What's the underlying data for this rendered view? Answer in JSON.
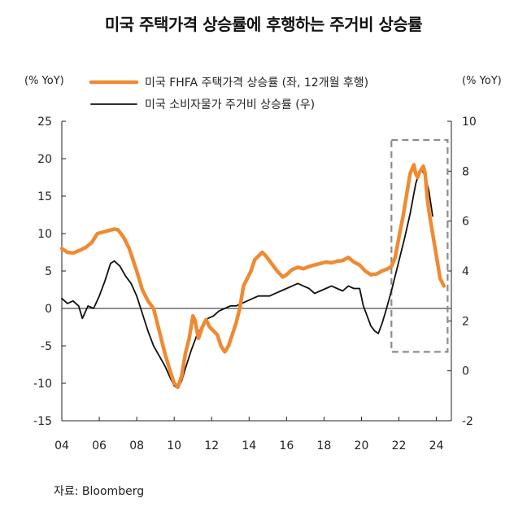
{
  "title": "미국 주택가격 상승률에 후행하는 주거비 상승률",
  "left_unit": "(% YoY)",
  "right_unit": "(% YoY)",
  "source": "자료: Bloomberg",
  "chart_data": {
    "type": "line",
    "x_ticks": [
      "04",
      "06",
      "08",
      "10",
      "12",
      "14",
      "16",
      "18",
      "20",
      "22",
      "24"
    ],
    "x_tick_years": [
      2004,
      2006,
      2008,
      2010,
      2012,
      2014,
      2016,
      2018,
      2020,
      2022,
      2024
    ],
    "xlim": [
      2004,
      2024.8
    ],
    "left_axis": {
      "ticks": [
        -15,
        -10,
        -5,
        0,
        5,
        10,
        15,
        20,
        25
      ],
      "ylim": [
        -15,
        25
      ]
    },
    "right_axis": {
      "ticks": [
        -2,
        0,
        2,
        4,
        6,
        8,
        10
      ],
      "ylim": [
        -2,
        10
      ]
    },
    "legend_placement": "top",
    "series": [
      {
        "name": "미국 FHFA 주택가격 상승률 (좌, 12개월 후행)",
        "axis": "left",
        "color": "#f08a32",
        "points": [
          [
            2004.0,
            8.0
          ],
          [
            2004.3,
            7.5
          ],
          [
            2004.6,
            7.4
          ],
          [
            2005.0,
            7.8
          ],
          [
            2005.3,
            8.2
          ],
          [
            2005.6,
            8.8
          ],
          [
            2005.9,
            10.0
          ],
          [
            2006.2,
            10.2
          ],
          [
            2006.5,
            10.4
          ],
          [
            2006.8,
            10.6
          ],
          [
            2007.0,
            10.5
          ],
          [
            2007.3,
            9.5
          ],
          [
            2007.6,
            8.0
          ],
          [
            2008.0,
            5.0
          ],
          [
            2008.3,
            2.5
          ],
          [
            2008.6,
            1.0
          ],
          [
            2008.9,
            0.0
          ],
          [
            2009.2,
            -3.0
          ],
          [
            2009.5,
            -6.0
          ],
          [
            2009.8,
            -8.5
          ],
          [
            2010.0,
            -10.0
          ],
          [
            2010.2,
            -10.5
          ],
          [
            2010.4,
            -9.0
          ],
          [
            2010.6,
            -6.0
          ],
          [
            2010.8,
            -4.0
          ],
          [
            2011.0,
            -1.0
          ],
          [
            2011.1,
            -1.5
          ],
          [
            2011.3,
            -4.0
          ],
          [
            2011.5,
            -2.5
          ],
          [
            2011.7,
            -1.5
          ],
          [
            2011.9,
            -2.5
          ],
          [
            2012.1,
            -3.0
          ],
          [
            2012.3,
            -3.5
          ],
          [
            2012.5,
            -5.0
          ],
          [
            2012.7,
            -5.8
          ],
          [
            2012.9,
            -5.0
          ],
          [
            2013.1,
            -3.5
          ],
          [
            2013.3,
            -2.0
          ],
          [
            2013.5,
            0.0
          ],
          [
            2013.7,
            3.0
          ],
          [
            2013.9,
            4.0
          ],
          [
            2014.1,
            5.0
          ],
          [
            2014.3,
            6.5
          ],
          [
            2014.5,
            7.0
          ],
          [
            2014.7,
            7.5
          ],
          [
            2014.9,
            7.0
          ],
          [
            2015.2,
            6.0
          ],
          [
            2015.5,
            5.0
          ],
          [
            2015.8,
            4.2
          ],
          [
            2016.0,
            4.5
          ],
          [
            2016.3,
            5.2
          ],
          [
            2016.6,
            5.5
          ],
          [
            2016.9,
            5.3
          ],
          [
            2017.2,
            5.6
          ],
          [
            2017.5,
            5.8
          ],
          [
            2017.8,
            6.0
          ],
          [
            2018.1,
            6.2
          ],
          [
            2018.4,
            6.1
          ],
          [
            2018.7,
            6.3
          ],
          [
            2019.0,
            6.4
          ],
          [
            2019.3,
            6.8
          ],
          [
            2019.6,
            6.2
          ],
          [
            2019.9,
            5.8
          ],
          [
            2020.2,
            5.0
          ],
          [
            2020.5,
            4.5
          ],
          [
            2020.8,
            4.6
          ],
          [
            2021.1,
            5.0
          ],
          [
            2021.4,
            5.3
          ],
          [
            2021.6,
            5.6
          ],
          [
            2021.8,
            6.8
          ],
          [
            2022.0,
            9.5
          ],
          [
            2022.2,
            12.0
          ],
          [
            2022.4,
            15.0
          ],
          [
            2022.6,
            18.0
          ],
          [
            2022.8,
            19.2
          ],
          [
            2022.9,
            18.0
          ],
          [
            2023.0,
            17.5
          ],
          [
            2023.1,
            18.2
          ],
          [
            2023.3,
            19.0
          ],
          [
            2023.4,
            18.0
          ],
          [
            2023.5,
            15.0
          ],
          [
            2023.6,
            13.0
          ],
          [
            2023.8,
            10.0
          ],
          [
            2024.0,
            7.0
          ],
          [
            2024.2,
            4.0
          ],
          [
            2024.4,
            3.0
          ]
        ]
      },
      {
        "name": "미국 소비자물가 주거비 상승률 (우)",
        "axis": "right",
        "color": "#111111",
        "points": [
          [
            2004.0,
            2.9
          ],
          [
            2004.3,
            2.7
          ],
          [
            2004.6,
            2.8
          ],
          [
            2004.9,
            2.6
          ],
          [
            2005.1,
            2.1
          ],
          [
            2005.4,
            2.6
          ],
          [
            2005.7,
            2.5
          ],
          [
            2006.0,
            3.0
          ],
          [
            2006.3,
            3.6
          ],
          [
            2006.6,
            4.3
          ],
          [
            2006.8,
            4.4
          ],
          [
            2007.1,
            4.2
          ],
          [
            2007.4,
            3.8
          ],
          [
            2007.7,
            3.5
          ],
          [
            2008.0,
            3.0
          ],
          [
            2008.3,
            2.3
          ],
          [
            2008.6,
            1.6
          ],
          [
            2008.9,
            1.0
          ],
          [
            2009.2,
            0.6
          ],
          [
            2009.5,
            0.2
          ],
          [
            2009.8,
            -0.3
          ],
          [
            2010.0,
            -0.6
          ],
          [
            2010.2,
            -0.7
          ],
          [
            2010.4,
            -0.4
          ],
          [
            2010.6,
            0.1
          ],
          [
            2010.9,
            0.8
          ],
          [
            2011.2,
            1.4
          ],
          [
            2011.5,
            1.8
          ],
          [
            2011.8,
            2.1
          ],
          [
            2012.1,
            2.2
          ],
          [
            2012.4,
            2.4
          ],
          [
            2012.7,
            2.5
          ],
          [
            2013.0,
            2.6
          ],
          [
            2013.3,
            2.6
          ],
          [
            2013.6,
            2.7
          ],
          [
            2013.9,
            2.8
          ],
          [
            2014.2,
            2.9
          ],
          [
            2014.5,
            3.0
          ],
          [
            2014.8,
            3.0
          ],
          [
            2015.1,
            3.0
          ],
          [
            2015.4,
            3.1
          ],
          [
            2015.7,
            3.2
          ],
          [
            2016.0,
            3.3
          ],
          [
            2016.3,
            3.4
          ],
          [
            2016.6,
            3.5
          ],
          [
            2016.9,
            3.4
          ],
          [
            2017.2,
            3.3
          ],
          [
            2017.5,
            3.1
          ],
          [
            2017.8,
            3.2
          ],
          [
            2018.1,
            3.3
          ],
          [
            2018.4,
            3.4
          ],
          [
            2018.7,
            3.3
          ],
          [
            2019.0,
            3.2
          ],
          [
            2019.3,
            3.4
          ],
          [
            2019.6,
            3.3
          ],
          [
            2019.9,
            3.3
          ],
          [
            2020.1,
            2.6
          ],
          [
            2020.3,
            2.2
          ],
          [
            2020.5,
            1.8
          ],
          [
            2020.7,
            1.6
          ],
          [
            2020.9,
            1.5
          ],
          [
            2021.1,
            1.9
          ],
          [
            2021.3,
            2.4
          ],
          [
            2021.6,
            3.2
          ],
          [
            2021.8,
            3.8
          ],
          [
            2022.0,
            4.4
          ],
          [
            2022.3,
            5.3
          ],
          [
            2022.6,
            6.3
          ],
          [
            2022.9,
            7.5
          ],
          [
            2023.1,
            8.0
          ],
          [
            2023.2,
            8.1
          ],
          [
            2023.4,
            7.8
          ],
          [
            2023.6,
            7.2
          ],
          [
            2023.8,
            6.2
          ]
        ]
      }
    ],
    "annotations": [
      {
        "type": "dashed-box",
        "x_range": [
          2021.6,
          2024.6
        ],
        "left_y_range": [
          -5.8,
          22.5
        ],
        "color": "#8c8c8c"
      }
    ]
  }
}
